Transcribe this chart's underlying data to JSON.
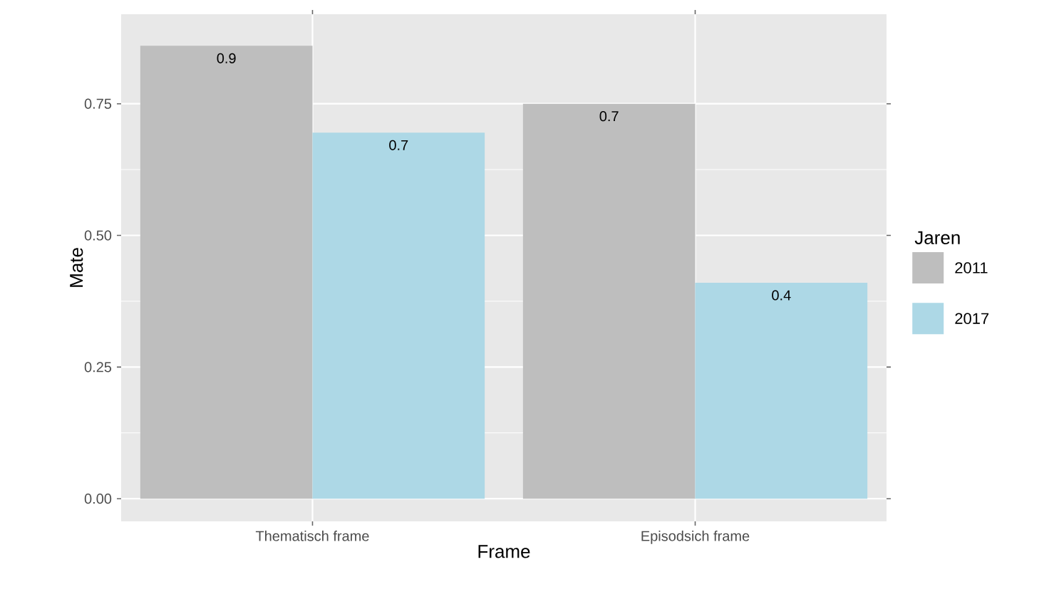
{
  "chart_data": {
    "type": "bar",
    "xlabel": "Frame",
    "ylabel": "Mate",
    "legend_title": "Jaren",
    "categories": [
      "Thematisch frame",
      "Episodsich frame"
    ],
    "series": [
      {
        "name": "2011",
        "color": "#bebebe",
        "values": [
          0.86,
          0.75
        ],
        "value_labels": [
          "0.9",
          "0.7"
        ]
      },
      {
        "name": "2017",
        "color": "#add8e6",
        "values": [
          0.695,
          0.41
        ],
        "value_labels": [
          "0.7",
          "0.4"
        ]
      }
    ],
    "ylim": [
      -0.043,
      0.92
    ],
    "yticks": [
      {
        "value": 0,
        "label": "0.00"
      },
      0.25,
      {
        "value": 0.5,
        "label": "0.50"
      },
      0.75
    ],
    "grid": true,
    "legend": "right"
  }
}
